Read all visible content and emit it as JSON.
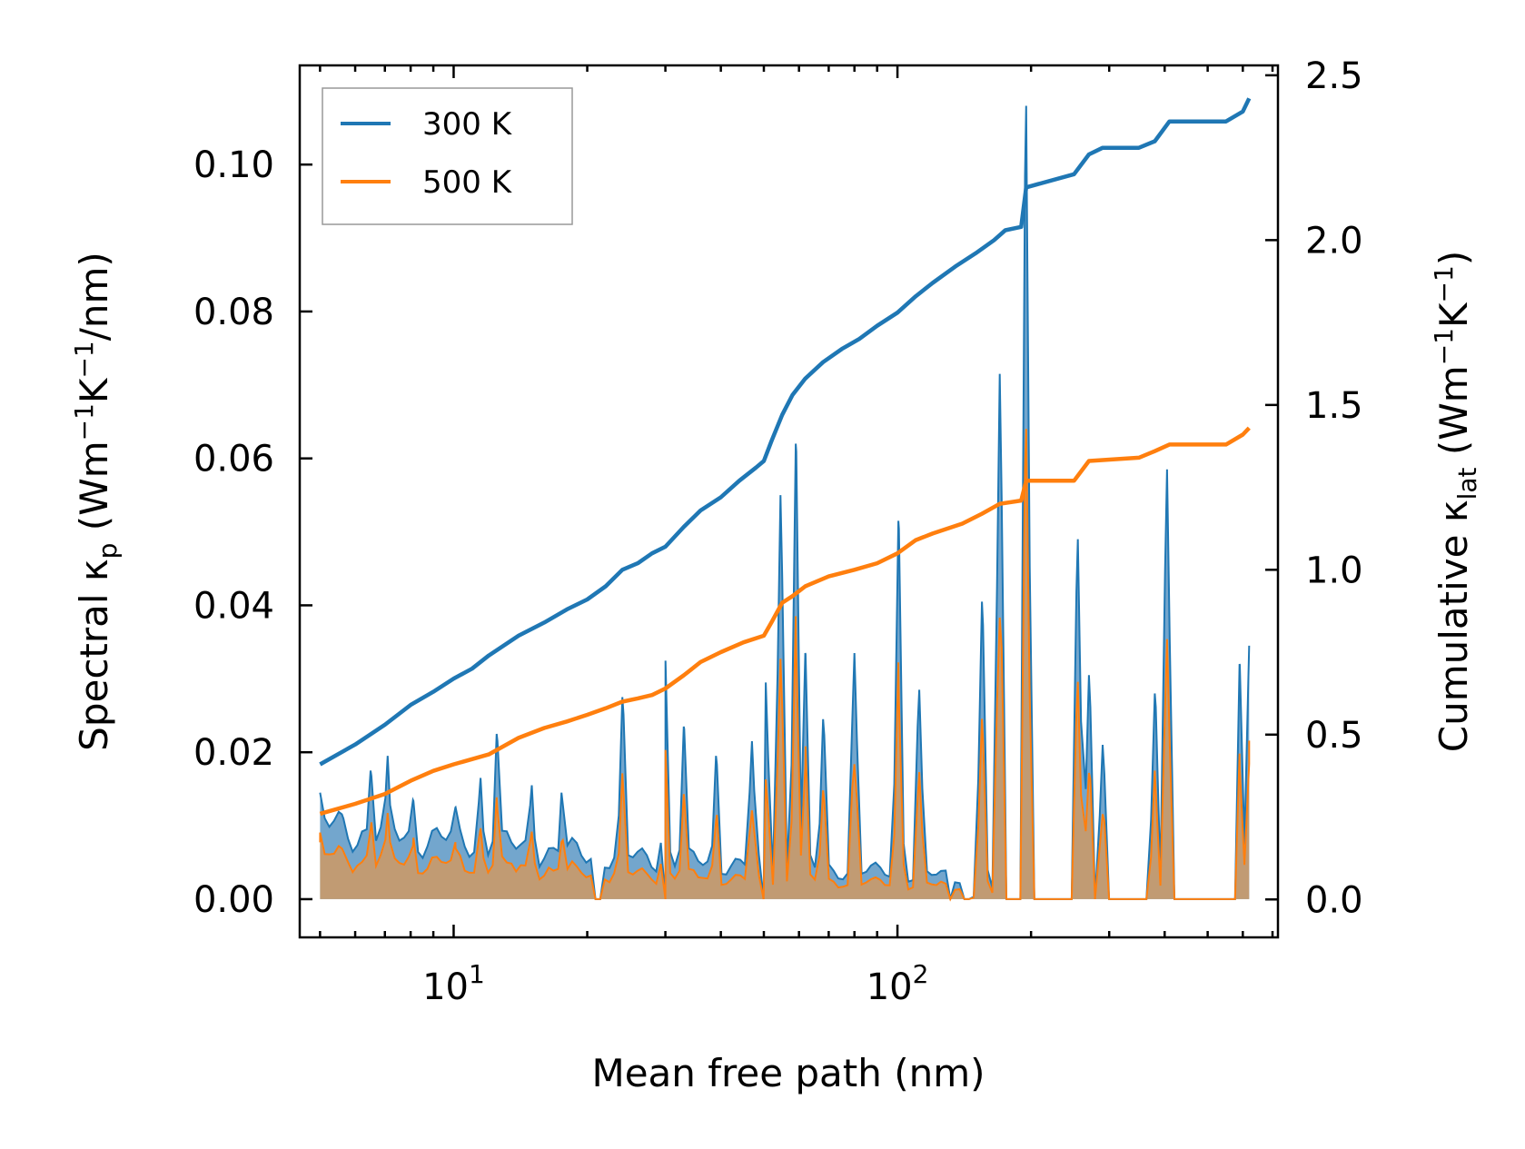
{
  "chart_data": {
    "type": "line",
    "xscale": "log",
    "xlim": [
      4.5,
      720
    ],
    "ylim_left": [
      -0.0052,
      0.1135
    ],
    "ylim_right": [
      -0.115,
      2.53
    ],
    "xlabel": "Mean free path (nm)",
    "ylabel_left": {
      "main": "Spectral κ",
      "sub": "p",
      "unit_open": " (Wm",
      "sup1": "−1",
      "unit_mid": "K",
      "sup2": "−1",
      "unit_close": "/nm)"
    },
    "ylabel_right": {
      "main": "Cumulative κ",
      "sub": "lat",
      "unit_open": " (Wm",
      "sup1": "−1",
      "unit_mid": "K",
      "sup2": "−1",
      "unit_close": ")"
    },
    "xticks_major": [
      {
        "value": 10,
        "base": "10",
        "exp": "1"
      },
      {
        "value": 100,
        "base": "10",
        "exp": "2"
      }
    ],
    "yticks_left": [
      {
        "value": 0.0,
        "label": "0.00"
      },
      {
        "value": 0.02,
        "label": "0.02"
      },
      {
        "value": 0.04,
        "label": "0.04"
      },
      {
        "value": 0.06,
        "label": "0.06"
      },
      {
        "value": 0.08,
        "label": "0.08"
      },
      {
        "value": 0.1,
        "label": "0.10"
      }
    ],
    "yticks_right": [
      {
        "value": 0.0,
        "label": "0.0"
      },
      {
        "value": 0.5,
        "label": "0.5"
      },
      {
        "value": 1.0,
        "label": "1.0"
      },
      {
        "value": 1.5,
        "label": "1.5"
      },
      {
        "value": 2.0,
        "label": "2.0"
      },
      {
        "value": 2.5,
        "label": "2.5"
      }
    ],
    "legend": {
      "placement": "top-left",
      "entries": [
        {
          "name": "300 K",
          "color": "#1f77b4"
        },
        {
          "name": "500 K",
          "color": "#ff7f0e"
        }
      ]
    },
    "colors": {
      "c300": "#1f77b4",
      "c500": "#ff7f0e",
      "fill300": "#5b97c4",
      "fill500": "#c59a6e",
      "frame": "#000000"
    },
    "spectral_x_range": [
      5,
      620
    ],
    "spectral_npts": 200,
    "spectral_300K_peaks": [
      [
        5.0,
        0.0145
      ],
      [
        5.6,
        0.01
      ],
      [
        6.5,
        0.0175
      ],
      [
        7.1,
        0.0195
      ],
      [
        8.1,
        0.0135
      ],
      [
        10.1,
        0.0125
      ],
      [
        11.5,
        0.0165
      ],
      [
        12.5,
        0.0225
      ],
      [
        15.0,
        0.0155
      ],
      [
        17.5,
        0.0145
      ],
      [
        24.0,
        0.0275
      ],
      [
        30.0,
        0.0325
      ],
      [
        33.0,
        0.0235
      ],
      [
        39.0,
        0.0195
      ],
      [
        47.0,
        0.0215
      ],
      [
        50.5,
        0.0295
      ],
      [
        54.5,
        0.055
      ],
      [
        59.0,
        0.062
      ],
      [
        62.0,
        0.0335
      ],
      [
        68.0,
        0.0245
      ],
      [
        80.0,
        0.0335
      ],
      [
        100.5,
        0.0515
      ],
      [
        112.0,
        0.0285
      ],
      [
        155.0,
        0.0405
      ],
      [
        170.0,
        0.0715
      ],
      [
        195.0,
        0.108
      ],
      [
        255.0,
        0.049
      ],
      [
        270.0,
        0.0305
      ],
      [
        290.0,
        0.021
      ],
      [
        380.0,
        0.028
      ],
      [
        405.0,
        0.0585
      ],
      [
        590.0,
        0.032
      ],
      [
        620.0,
        0.0345
      ]
    ],
    "spectral_300K_zero_ranges": [
      [
        20.5,
        21.5
      ],
      [
        29.5,
        30.0
      ],
      [
        49.5,
        50.3
      ],
      [
        78.0,
        79.0
      ],
      [
        130.0,
        133.0
      ],
      [
        140.0,
        148.0
      ],
      [
        175.0,
        190.0
      ],
      [
        200.0,
        250.0
      ],
      [
        275.0,
        282.0
      ],
      [
        298.0,
        370.0
      ],
      [
        415.0,
        580.0
      ]
    ],
    "ratio_500_to_300": 0.58,
    "cumulative_300K": {
      "x": [
        5.0,
        6.0,
        7.0,
        8.0,
        9.0,
        10.0,
        11.0,
        12.0,
        14.0,
        16.0,
        18.0,
        20.0,
        22.0,
        24.0,
        26.0,
        28.0,
        30.0,
        33.0,
        36.0,
        40.0,
        44.0,
        48.0,
        50.0,
        52.0,
        55.0,
        58.0,
        62.0,
        68.0,
        75.0,
        82.0,
        90.0,
        100.0,
        110.0,
        120.0,
        135.0,
        150.0,
        165.0,
        175.0,
        190.0,
        195.0,
        250.0,
        270.0,
        290.0,
        350.0,
        380.0,
        410.0,
        550.0,
        600.0,
        620.0
      ],
      "y": [
        0.41,
        0.47,
        0.53,
        0.59,
        0.63,
        0.67,
        0.7,
        0.74,
        0.8,
        0.84,
        0.88,
        0.91,
        0.95,
        1.0,
        1.02,
        1.05,
        1.07,
        1.13,
        1.18,
        1.22,
        1.27,
        1.31,
        1.33,
        1.39,
        1.47,
        1.53,
        1.58,
        1.63,
        1.67,
        1.7,
        1.74,
        1.78,
        1.83,
        1.87,
        1.92,
        1.96,
        2.0,
        2.03,
        2.04,
        2.16,
        2.2,
        2.26,
        2.28,
        2.28,
        2.3,
        2.36,
        2.36,
        2.39,
        2.43
      ]
    },
    "cumulative_500K": {
      "x": [
        5.0,
        6.0,
        7.0,
        8.0,
        9.0,
        10.0,
        12.0,
        14.0,
        16.0,
        18.0,
        20.0,
        22.0,
        24.0,
        26.0,
        28.0,
        30.0,
        33.0,
        36.0,
        40.0,
        45.0,
        50.0,
        52.0,
        55.0,
        58.0,
        62.0,
        70.0,
        80.0,
        90.0,
        100.0,
        110.0,
        120.0,
        140.0,
        155.0,
        170.0,
        190.0,
        195.0,
        250.0,
        270.0,
        350.0,
        380.0,
        410.0,
        550.0,
        600.0,
        620.0
      ],
      "y": [
        0.26,
        0.29,
        0.32,
        0.36,
        0.39,
        0.41,
        0.44,
        0.49,
        0.52,
        0.54,
        0.56,
        0.58,
        0.6,
        0.61,
        0.62,
        0.64,
        0.68,
        0.72,
        0.75,
        0.78,
        0.8,
        0.84,
        0.9,
        0.92,
        0.95,
        0.98,
        1.0,
        1.02,
        1.05,
        1.09,
        1.11,
        1.14,
        1.17,
        1.2,
        1.21,
        1.27,
        1.27,
        1.33,
        1.34,
        1.36,
        1.38,
        1.38,
        1.41,
        1.43
      ]
    }
  }
}
